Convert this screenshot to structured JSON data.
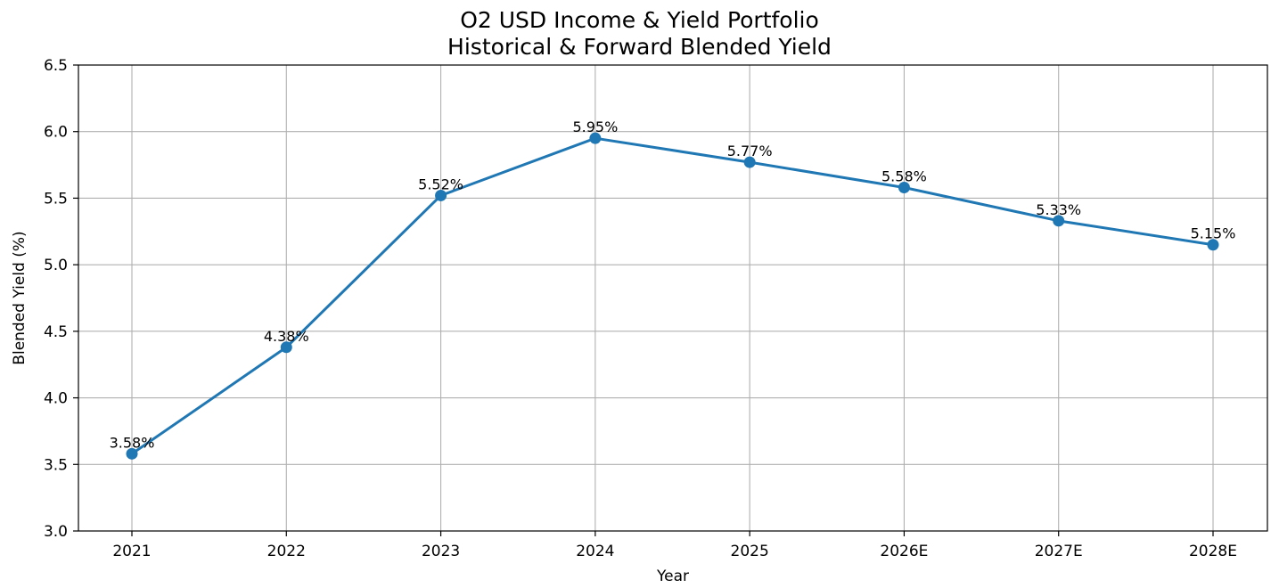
{
  "chart_data": {
    "type": "line",
    "title_lines": [
      "O2 USD Income & Yield Portfolio",
      "Historical & Forward Blended Yield"
    ],
    "xlabel": "Year",
    "ylabel": "Blended Yield (%)",
    "categories": [
      "2021",
      "2022",
      "2023",
      "2024",
      "2025",
      "2026E",
      "2027E",
      "2028E"
    ],
    "values": [
      3.58,
      4.38,
      5.52,
      5.95,
      5.77,
      5.58,
      5.33,
      5.15
    ],
    "data_labels": [
      "3.58%",
      "4.38%",
      "5.52%",
      "5.95%",
      "5.77%",
      "5.58%",
      "5.33%",
      "5.15%"
    ],
    "ylim": [
      3.0,
      6.5
    ],
    "yticks": [
      "3.0",
      "3.5",
      "4.0",
      "4.5",
      "5.0",
      "5.5",
      "6.0",
      "6.5"
    ],
    "grid": true,
    "line_color": "#1f77b4",
    "marker": "circle"
  }
}
